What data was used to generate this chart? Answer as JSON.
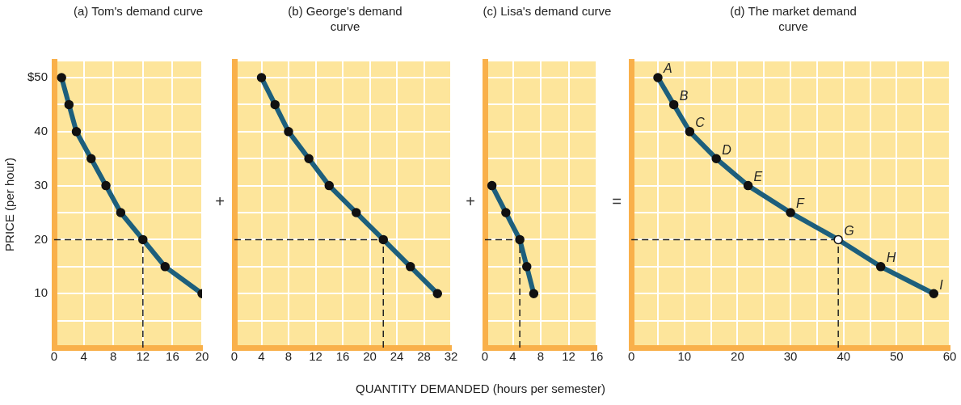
{
  "chart_data": [
    {
      "type": "line",
      "title": "(a) Tom's demand curve",
      "ylabel": "PRICE (per hour)",
      "annotations": [
        "+"
      ],
      "marker": "circle",
      "grid": true,
      "xlim": [
        0,
        20
      ],
      "xticks": [
        0,
        4,
        8,
        12,
        16,
        20
      ],
      "ylim": [
        0,
        53
      ],
      "yticks": [
        {
          "value": 5,
          "label": null
        },
        10,
        {
          "value": 15,
          "label": null
        },
        20,
        {
          "value": 25,
          "label": null
        },
        30,
        {
          "value": 35,
          "label": null
        },
        40,
        {
          "value": 45,
          "label": null
        },
        {
          "value": 50,
          "label": "$50"
        }
      ],
      "series": [
        {
          "color": "#1d5f7c",
          "colors": [
            "#111111",
            "#111111",
            "#111111",
            "#111111",
            "#111111",
            "#111111",
            "#111111",
            "#111111",
            "#111111"
          ],
          "x": [
            1,
            2,
            3,
            5,
            7,
            9,
            12,
            15,
            20
          ],
          "values": [
            50,
            45,
            40,
            35,
            30,
            25,
            20,
            15,
            10
          ]
        }
      ],
      "ref_lines": [
        {
          "axis": "y",
          "value": 20,
          "line_style": "dashed",
          "color": "#222222"
        },
        {
          "axis": "x",
          "value": 12,
          "line_style": "dashed",
          "color": "#222222"
        }
      ]
    },
    {
      "type": "line",
      "title": "(b) George's demand curve",
      "annotations": [
        "+"
      ],
      "marker": "circle",
      "grid": true,
      "tick_labels": "x",
      "xlim": [
        0,
        32
      ],
      "xticks": [
        0,
        4,
        8,
        12,
        16,
        20,
        24,
        28,
        32
      ],
      "ylim": [
        0,
        53
      ],
      "yticks": [
        5,
        10,
        15,
        20,
        25,
        30,
        35,
        40,
        45,
        50
      ],
      "series": [
        {
          "color": "#1d5f7c",
          "colors": [
            "#111111",
            "#111111",
            "#111111",
            "#111111",
            "#111111",
            "#111111",
            "#111111",
            "#111111",
            "#111111"
          ],
          "x": [
            4,
            6,
            8,
            11,
            14,
            18,
            22,
            26,
            30
          ],
          "values": [
            50,
            45,
            40,
            35,
            30,
            25,
            20,
            15,
            10
          ]
        }
      ],
      "ref_lines": [
        {
          "axis": "y",
          "value": 20,
          "line_style": "dashed",
          "color": "#222222"
        },
        {
          "axis": "x",
          "value": 22,
          "line_style": "dashed",
          "color": "#222222"
        }
      ]
    },
    {
      "type": "line",
      "title": "(c) Lisa's demand curve",
      "xlabel": "QUANTITY DEMANDED (hours per semester)",
      "annotations": [
        "="
      ],
      "marker": "circle",
      "grid": true,
      "tick_labels": "x",
      "xlim": [
        0,
        16
      ],
      "xticks": [
        0,
        4,
        8,
        12,
        16
      ],
      "ylim": [
        0,
        53
      ],
      "yticks": [
        5,
        10,
        15,
        20,
        25,
        30,
        35,
        40,
        45,
        50
      ],
      "series": [
        {
          "color": "#1d5f7c",
          "colors": [
            "#111111",
            "#111111",
            "#111111",
            "#111111",
            "#111111"
          ],
          "x": [
            1,
            3,
            5,
            6,
            7
          ],
          "values": [
            30,
            25,
            20,
            15,
            10
          ]
        }
      ],
      "ref_lines": [
        {
          "axis": "y",
          "value": 20,
          "line_style": "dashed",
          "color": "#222222"
        },
        {
          "axis": "x",
          "value": 5,
          "line_style": "dashed",
          "color": "#222222"
        }
      ]
    },
    {
      "type": "line",
      "title": "(d) The market demand curve",
      "marker": "circle",
      "grid": true,
      "tick_labels": "x",
      "xlim": [
        0,
        60
      ],
      "xticks": [
        0,
        {
          "value": 5,
          "label": null
        },
        10,
        {
          "value": 15,
          "label": null
        },
        20,
        {
          "value": 25,
          "label": null
        },
        30,
        {
          "value": 35,
          "label": null
        },
        40,
        {
          "value": 45,
          "label": null
        },
        50,
        {
          "value": 55,
          "label": null
        },
        60
      ],
      "ylim": [
        0,
        53
      ],
      "yticks": [
        5,
        10,
        15,
        20,
        25,
        30,
        35,
        40,
        45,
        50
      ],
      "series": [
        {
          "color": "#1d5f7c",
          "colors": [
            "#111111",
            "#111111",
            "#111111",
            "#111111",
            "#111111",
            "#111111",
            "#ffffff",
            "#111111",
            "#111111"
          ],
          "x": [
            5,
            8,
            11,
            16,
            22,
            30,
            39,
            47,
            57
          ],
          "values": [
            50,
            45,
            40,
            35,
            30,
            25,
            20,
            15,
            10
          ]
        }
      ],
      "annotations": [
        {
          "text": "A",
          "x": 5,
          "y": 50
        },
        {
          "text": "B",
          "x": 8,
          "y": 45
        },
        {
          "text": "C",
          "x": 11,
          "y": 40
        },
        {
          "text": "D",
          "x": 16,
          "y": 35
        },
        {
          "text": "E",
          "x": 22,
          "y": 30
        },
        {
          "text": "F",
          "x": 30,
          "y": 25
        },
        {
          "text": "G",
          "x": 39,
          "y": 20
        },
        {
          "text": "H",
          "x": 47,
          "y": 15
        },
        {
          "text": "I",
          "x": 57,
          "y": 10
        }
      ],
      "ref_lines": [
        {
          "axis": "y",
          "value": 20,
          "line_style": "dashed",
          "color": "#222222"
        },
        {
          "axis": "x",
          "value": 39,
          "line_style": "dashed",
          "color": "#222222"
        }
      ]
    }
  ]
}
